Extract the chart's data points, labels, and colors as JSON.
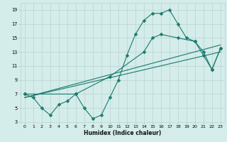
{
  "xlabel": "Humidex (Indice chaleur)",
  "bg_color": "#d4ecea",
  "grid_color": "#b8d4d0",
  "line_color": "#1a7a6e",
  "xlim": [
    -0.5,
    23.5
  ],
  "ylim": [
    3,
    20
  ],
  "xticks": [
    0,
    1,
    2,
    3,
    4,
    5,
    6,
    7,
    8,
    9,
    10,
    11,
    12,
    13,
    14,
    15,
    16,
    17,
    18,
    19,
    20,
    21,
    22,
    23
  ],
  "yticks": [
    3,
    5,
    7,
    9,
    11,
    13,
    15,
    17,
    19
  ],
  "line1_x": [
    0,
    1,
    2,
    3,
    4,
    5,
    6,
    7,
    8,
    9,
    10,
    11,
    12,
    13,
    14,
    15,
    16,
    17,
    18,
    19,
    20,
    21,
    22,
    23
  ],
  "line1_y": [
    7,
    6.5,
    5,
    4,
    5.5,
    6,
    7,
    5,
    3.5,
    4,
    6.5,
    9,
    12.5,
    15.5,
    17.5,
    18.5,
    18.5,
    19,
    17,
    15,
    14.5,
    13,
    10.5,
    13.5
  ],
  "line2_x": [
    0,
    6,
    10,
    14,
    15,
    16,
    18,
    20,
    21,
    22,
    23
  ],
  "line2_y": [
    7,
    7,
    9.5,
    13,
    15,
    15.5,
    15,
    14.5,
    12.5,
    10.5,
    13.5
  ],
  "line3_x": [
    0,
    23
  ],
  "line3_y": [
    6.5,
    13.0
  ],
  "line4_x": [
    0,
    23
  ],
  "line4_y": [
    6.5,
    14.0
  ],
  "marker_size": 2.5
}
